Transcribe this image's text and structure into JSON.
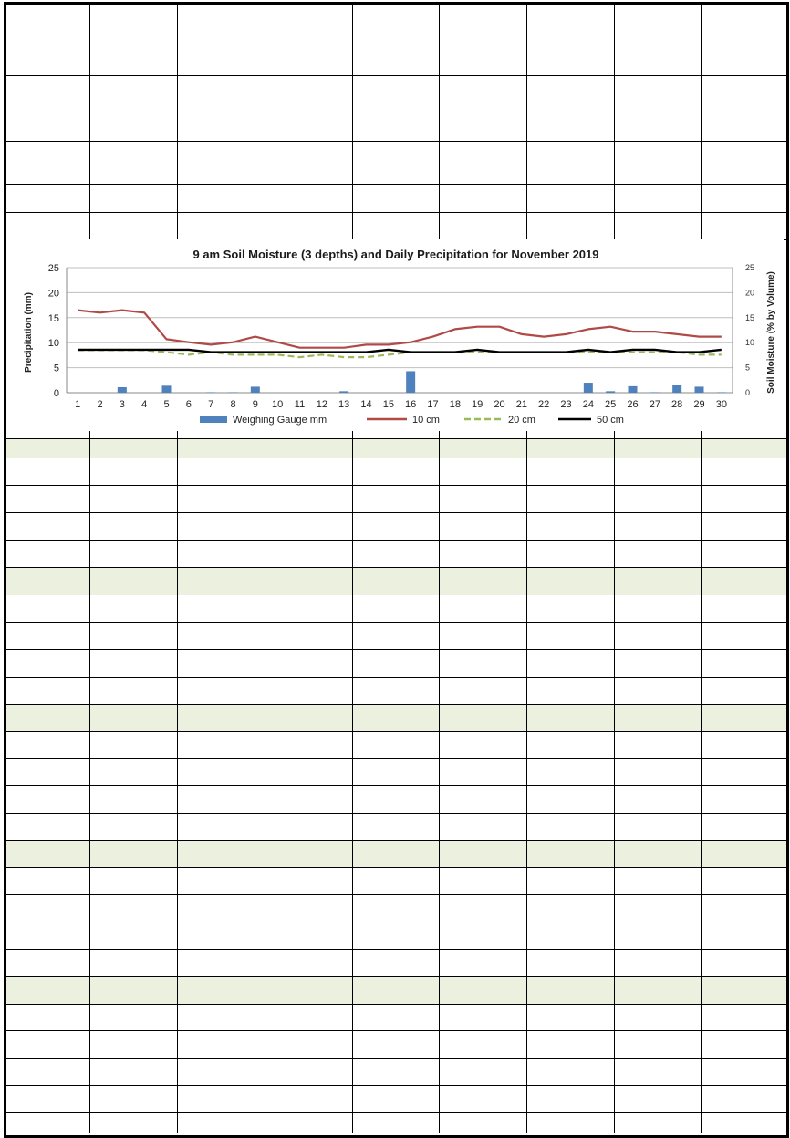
{
  "chart_data": {
    "type": "bar+line",
    "title": "9 am Soil Moisture (3 depths) and Daily Precipitation for November 2019",
    "xlabel": "",
    "ylabel": "Precipitation (mm)",
    "y2label": "Soil Moisture (% by Volume)",
    "categories": [
      "1",
      "2",
      "3",
      "4",
      "5",
      "6",
      "7",
      "8",
      "9",
      "10",
      "11",
      "12",
      "13",
      "14",
      "15",
      "16",
      "17",
      "18",
      "19",
      "20",
      "21",
      "22",
      "23",
      "24",
      "25",
      "26",
      "27",
      "28",
      "29",
      "30"
    ],
    "ylim": [
      0,
      25
    ],
    "y2lim": [
      0,
      25
    ],
    "yticks": [
      "0",
      "5",
      "10",
      "15",
      "20",
      "25"
    ],
    "y2ticks": [
      "0",
      "5",
      "10",
      "15",
      "20",
      "25"
    ],
    "grid": true,
    "legend_position": "bottom",
    "series": [
      {
        "name": "Weighing Gauge mm",
        "type": "bar",
        "axis": "left",
        "color": "#4f81bd",
        "values": [
          0,
          0,
          1.1,
          0,
          1.4,
          0,
          0.1,
          0.1,
          1.2,
          0,
          0,
          0,
          0.3,
          0,
          0,
          4.3,
          0,
          0,
          0,
          0,
          0,
          0,
          0,
          2.0,
          0.3,
          1.3,
          0.1,
          1.6,
          1.2,
          0.1
        ]
      },
      {
        "name": "10 cm",
        "type": "line",
        "axis": "right",
        "color": "#b04a47",
        "dash": "solid",
        "values": [
          16.5,
          16.0,
          16.5,
          16.0,
          10.7,
          10.1,
          9.6,
          10.1,
          11.2,
          10.1,
          9.0,
          9.0,
          9.0,
          9.6,
          9.6,
          10.1,
          11.2,
          12.7,
          13.2,
          13.2,
          11.7,
          11.2,
          11.7,
          12.7,
          13.2,
          12.2,
          12.2,
          11.7,
          11.2,
          11.2
        ]
      },
      {
        "name": "20 cm",
        "type": "line",
        "axis": "right",
        "color": "#9bbb59",
        "dash": "dashed",
        "values": [
          8.5,
          8.5,
          8.5,
          8.5,
          8.1,
          7.6,
          8.1,
          7.6,
          7.6,
          7.6,
          7.1,
          7.6,
          7.1,
          7.1,
          7.6,
          8.1,
          8.1,
          8.1,
          8.1,
          8.1,
          8.1,
          8.1,
          8.1,
          8.1,
          8.1,
          8.1,
          8.1,
          8.1,
          7.6,
          7.6
        ]
      },
      {
        "name": "50 cm",
        "type": "line",
        "axis": "right",
        "color": "#000000",
        "dash": "solid",
        "values": [
          8.6,
          8.6,
          8.6,
          8.6,
          8.6,
          8.6,
          8.1,
          8.1,
          8.1,
          8.1,
          8.1,
          8.1,
          8.1,
          8.1,
          8.6,
          8.1,
          8.1,
          8.1,
          8.6,
          8.1,
          8.1,
          8.1,
          8.1,
          8.6,
          8.1,
          8.6,
          8.6,
          8.1,
          8.1,
          8.6
        ]
      }
    ]
  },
  "colors": {
    "shaded_row": "#ebf1de",
    "grid": "#bfbfbf",
    "border": "#000000"
  }
}
